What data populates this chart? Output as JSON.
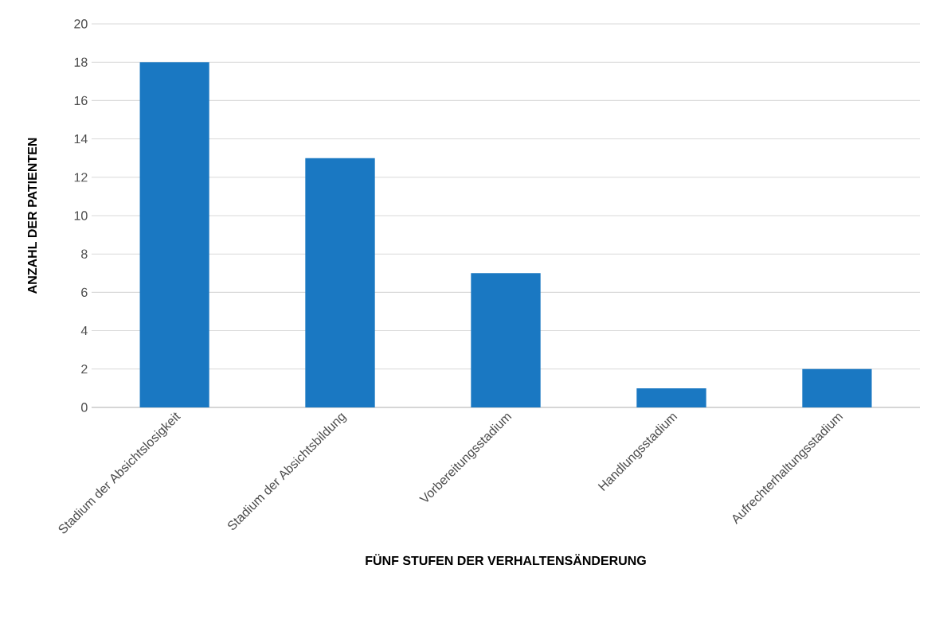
{
  "chart_data": {
    "type": "bar",
    "xlabel": "FÜNF STUFEN DER VERHALTENSÄNDERUNG",
    "ylabel": "ANZAHL DER PATIENTEN",
    "categories": [
      "Stadium der Absichtslosigkeit",
      "Stadium der Absichtsbildung",
      "Vorbereitungsstadium",
      "Handlungsstadium",
      "Aufrechterhaltungsstadium"
    ],
    "values": [
      18,
      13,
      7,
      1,
      2
    ],
    "color": "#1a78c2",
    "ylim": [
      0,
      20
    ],
    "yticks": [
      0,
      2,
      4,
      6,
      8,
      10,
      12,
      14,
      16,
      18,
      20
    ],
    "grid": "y"
  }
}
